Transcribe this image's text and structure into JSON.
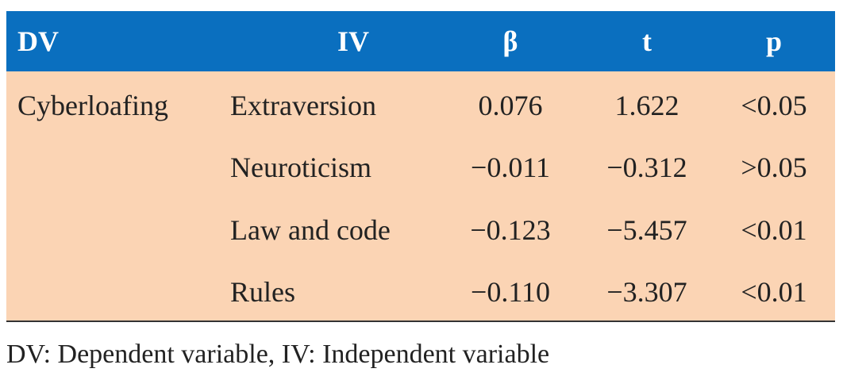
{
  "table": {
    "header": [
      "DV",
      "IV",
      "β",
      "t",
      "p"
    ],
    "dv": "Cyberloafing",
    "rows": [
      [
        "Extraversion",
        "0.076",
        "1.622",
        "<0.05"
      ],
      [
        "Neuroticism",
        "−0.011",
        "−0.312",
        ">0.05"
      ],
      [
        "Law and code",
        "−0.123",
        "−5.457",
        "<0.01"
      ],
      [
        "Rules",
        "−0.110",
        "−3.307",
        "<0.01"
      ]
    ],
    "note": "DV: Dependent variable, IV: Independent variable"
  }
}
